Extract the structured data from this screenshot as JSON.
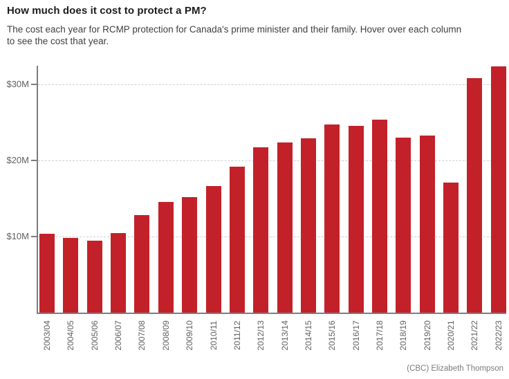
{
  "header": {
    "title": "How much does it cost to protect a PM?",
    "subtitle": "The cost each year for RCMP protection for Canada's prime minister and their family. Hover over each column to see the cost that year.",
    "subtitle_lines": [
      "The cost each year for RCMP protection for Canada's prime minister and their family. Hover over each column",
      "to see the cost that year."
    ]
  },
  "footer": {
    "attribution": "(CBC) Elizabeth Thompson"
  },
  "chart_data": {
    "type": "bar",
    "title": "How much does it cost to protect a PM?",
    "subtitle": "The cost each year for RCMP protection for Canada's prime minister and their family. Hover over each column to see the cost that year.",
    "categories": [
      "2003/04",
      "2004/05",
      "2005/06",
      "2006/07",
      "2007/08",
      "2008/09",
      "2009/10",
      "2010/11",
      "2011/12",
      "2012/13",
      "2013/14",
      "2014/15",
      "2015/16",
      "2016/17",
      "2017/18",
      "2018/19",
      "2019/20",
      "2020/21",
      "2021/22",
      "2022/23"
    ],
    "values": [
      10.4,
      9.8,
      9.5,
      10.5,
      12.8,
      14.6,
      15.2,
      16.7,
      19.2,
      21.8,
      22.4,
      22.9,
      24.8,
      24.6,
      25.4,
      23.0,
      23.3,
      17.1,
      30.9,
      32.4
    ],
    "value_unit": "million CAD per year (estimated from pixel heights)",
    "xlabel": "",
    "ylabel": "",
    "y_ticks": [
      {
        "value": 10,
        "label": "$10M"
      },
      {
        "value": 20,
        "label": "$20M"
      },
      {
        "value": 30,
        "label": "$30M"
      }
    ],
    "ylim": [
      0,
      32.5
    ],
    "grid": "horizontal-dashed",
    "legend": "none",
    "bar_color": "#c32129",
    "attribution": "(CBC) Elizabeth Thompson"
  },
  "colors": {
    "bar": "#c32129",
    "axis": "#7d7d7d",
    "gridline": "#c9d0d4",
    "title": "#1c1c1c",
    "subtitle": "#3f3f3f",
    "tick_label": "#616161",
    "attribution": "#7b7b7b",
    "background": "#ffffff"
  }
}
